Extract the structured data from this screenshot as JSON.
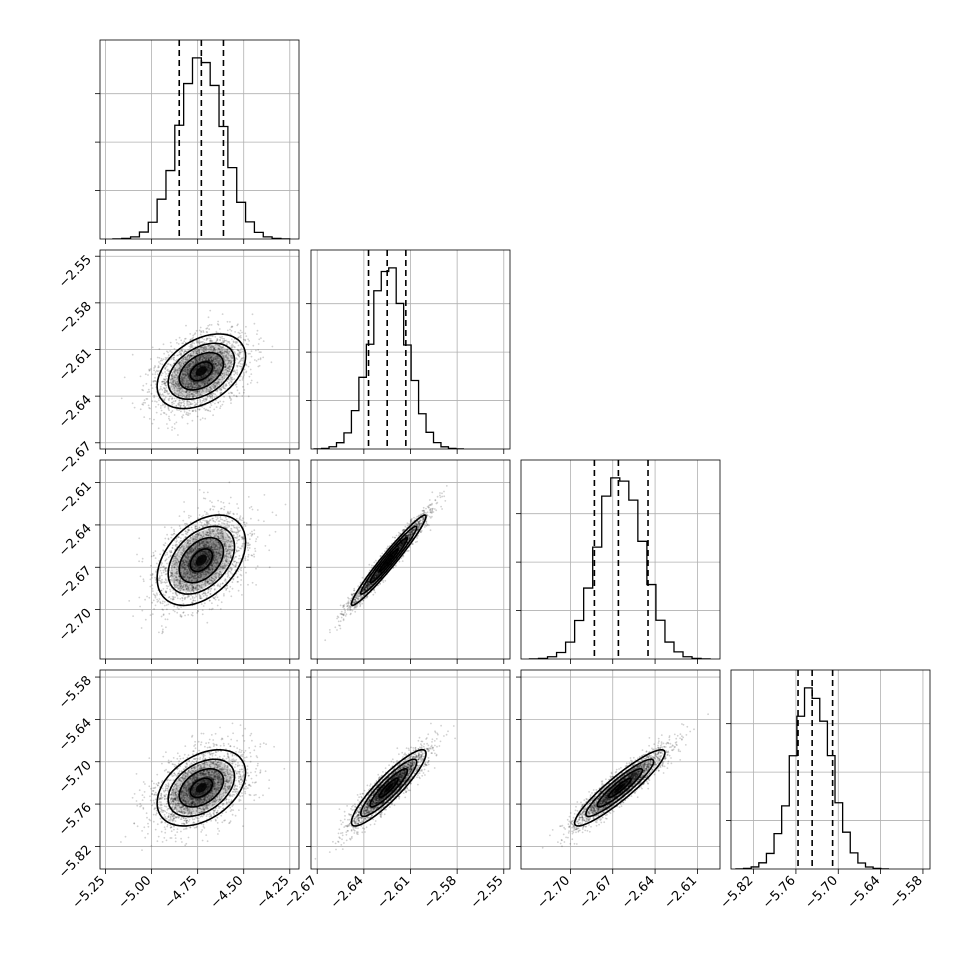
{
  "chart_data": {
    "type": "corner",
    "grid": true,
    "parameters": [
      {
        "range": [
          -5.28,
          -4.2
        ],
        "mean": -4.73,
        "sigma": 0.12,
        "quantiles": [
          -4.85,
          -4.73,
          -4.61
        ],
        "ticks": [
          -5.25,
          -5.0,
          -4.75,
          -4.5,
          -4.25
        ],
        "tick_labels": [
          "−5.25",
          "−5.00",
          "−4.75",
          "−4.50",
          "−4.25"
        ]
      },
      {
        "range": [
          -2.674,
          -2.546
        ],
        "mean": -2.624,
        "sigma": 0.012,
        "quantiles": [
          -2.637,
          -2.625,
          -2.613
        ],
        "ticks": [
          -2.67,
          -2.64,
          -2.61,
          -2.58,
          -2.55
        ],
        "tick_labels": [
          "−2.67",
          "−2.64",
          "−2.61",
          "−2.58",
          "−2.55"
        ]
      },
      {
        "range": [
          -2.735,
          -2.594
        ],
        "mean": -2.665,
        "sigma": 0.016,
        "quantiles": [
          -2.683,
          -2.666,
          -2.645
        ],
        "ticks": [
          -2.7,
          -2.67,
          -2.64,
          -2.61
        ],
        "tick_labels": [
          "−2.70",
          "−2.67",
          "−2.64",
          "−2.61"
        ]
      },
      {
        "range": [
          -5.852,
          -5.57
        ],
        "mean": -5.737,
        "sigma": 0.027,
        "quantiles": [
          -5.757,
          -5.737,
          -5.708
        ],
        "ticks": [
          -5.82,
          -5.76,
          -5.7,
          -5.64,
          -5.58
        ],
        "tick_labels": [
          "−5.82",
          "−5.76",
          "−5.70",
          "−5.64",
          "−5.58"
        ]
      }
    ],
    "correlations": [
      [
        1.0,
        0.4,
        0.4,
        0.4
      ],
      [
        0.4,
        1.0,
        0.97,
        0.9
      ],
      [
        0.4,
        0.97,
        1.0,
        0.92
      ],
      [
        0.4,
        0.9,
        0.92,
        1.0
      ]
    ],
    "contour_levels_sigma": [
      0.5,
      1.0,
      1.5,
      2.0
    ],
    "colors": {
      "points": "#000000",
      "lines": "#000000",
      "grid": "#b0b0b0"
    }
  }
}
